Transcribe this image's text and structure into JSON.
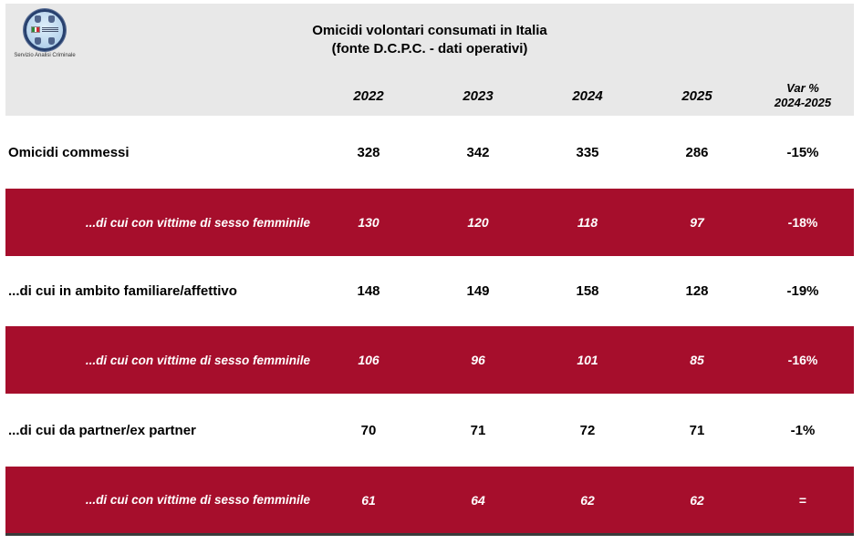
{
  "colors": {
    "header_bg": "#e8e8e8",
    "highlight_red": "#a60e2c",
    "white_row_text": "#000000",
    "red_row_text": "#ffffff",
    "bottom_border": "#3a3a3a"
  },
  "logo": {
    "caption": "Servizio Analisi Criminale"
  },
  "header": {
    "title_line1": "Omicidi volontari consumati in Italia",
    "title_line2": "(fonte D.C.P.C. - dati operativi)",
    "year_columns": [
      "2022",
      "2023",
      "2024",
      "2025"
    ],
    "var_column_line1": "Var %",
    "var_column_line2": "2024-2025"
  },
  "table": {
    "rows": [
      {
        "label": "Omicidi commessi",
        "style": "white",
        "v2022": "328",
        "v2023": "342",
        "v2024": "335",
        "v2025": "286",
        "var": "-15%"
      },
      {
        "label": "...di cui con vittime di sesso femminile",
        "style": "red",
        "v2022": "130",
        "v2023": "120",
        "v2024": "118",
        "v2025": "97",
        "var": "-18%"
      },
      {
        "label": "...di cui in ambito familiare/affettivo",
        "style": "white",
        "v2022": "148",
        "v2023": "149",
        "v2024": "158",
        "v2025": "128",
        "var": "-19%"
      },
      {
        "label": "...di cui con vittime di sesso femminile",
        "style": "red",
        "v2022": "106",
        "v2023": "96",
        "v2024": "101",
        "v2025": "85",
        "var": "-16%"
      },
      {
        "label": "...di cui da partner/ex partner",
        "style": "white",
        "v2022": "70",
        "v2023": "71",
        "v2024": "72",
        "v2025": "71",
        "var": "-1%"
      },
      {
        "label": "...di cui con vittime di sesso femminile",
        "style": "red",
        "v2022": "61",
        "v2023": "64",
        "v2024": "62",
        "v2025": "62",
        "var": "="
      }
    ]
  }
}
